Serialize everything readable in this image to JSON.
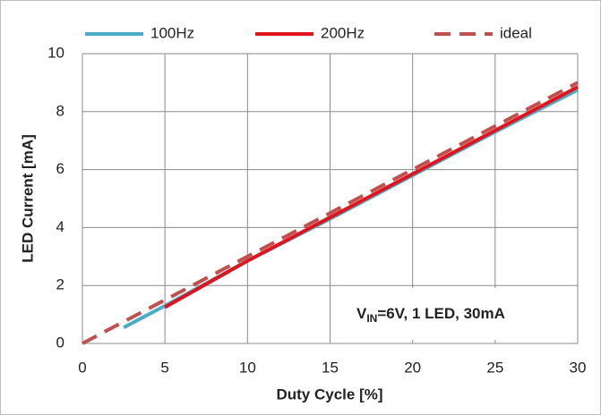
{
  "chart_data": {
    "type": "line",
    "xlabel": "Duty Cycle [%]",
    "ylabel": "LED Current [mA]",
    "annotation": {
      "main": "V",
      "sub": "IN",
      "rest": "=6V, 1 LED, 30mA"
    },
    "xlim": [
      0,
      30
    ],
    "xticks": [
      0,
      5,
      10,
      15,
      20,
      25,
      30
    ],
    "ylim": [
      0,
      10
    ],
    "yticks": [
      0,
      2,
      4,
      6,
      8,
      10
    ],
    "grid": true,
    "legend": "top",
    "series": [
      {
        "name": "100Hz",
        "color": "#4bacc6",
        "dashed": false,
        "x": [
          2.5,
          5,
          10,
          15,
          20,
          25,
          30
        ],
        "values": [
          0.55,
          1.3,
          2.85,
          4.3,
          5.8,
          7.3,
          8.75
        ]
      },
      {
        "name": "200Hz",
        "color": "#e0141e",
        "dashed": false,
        "x": [
          5,
          10,
          15,
          20,
          25,
          30
        ],
        "values": [
          1.25,
          2.85,
          4.35,
          5.85,
          7.35,
          8.85
        ]
      },
      {
        "name": "ideal",
        "color": "#c0504d",
        "dashed": true,
        "x": [
          0,
          30
        ],
        "values": [
          0,
          9
        ]
      }
    ]
  }
}
